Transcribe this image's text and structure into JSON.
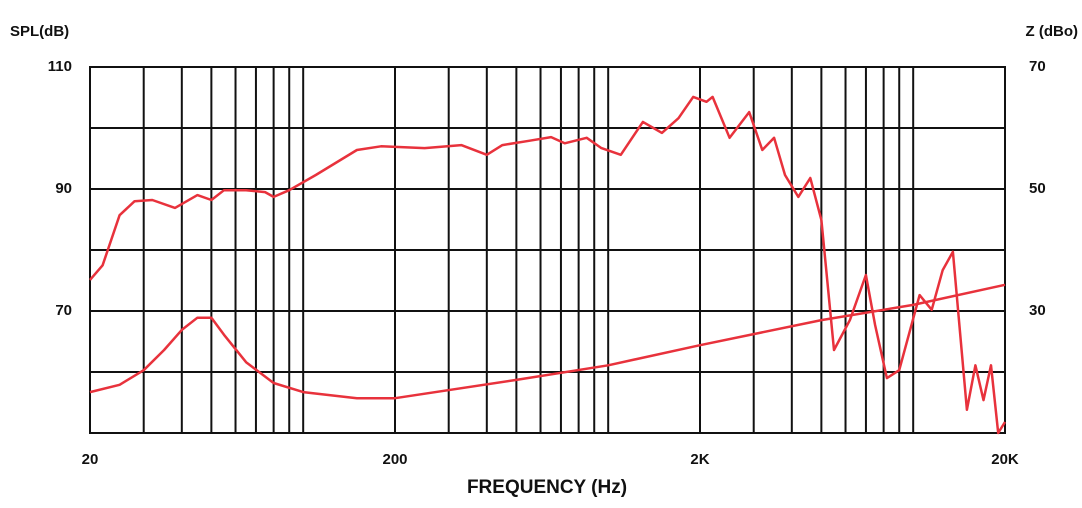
{
  "chart_data": {
    "type": "line",
    "ylabel": "SPL(dB)",
    "y2label": "Z (dBo)",
    "xlabel": "FREQUENCY (Hz)",
    "xscale": "log",
    "xlim": [
      20,
      20000
    ],
    "xticks": [
      20,
      200,
      {
        "value": 2000,
        "label": "2K"
      },
      {
        "value": 20000,
        "label": "20K"
      }
    ],
    "minor_xticks": [
      30,
      40,
      50,
      60,
      70,
      80,
      90,
      100,
      300,
      400,
      500,
      600,
      700,
      800,
      900,
      1000,
      3000,
      4000,
      5000,
      6000,
      7000,
      8000,
      9000,
      10000
    ],
    "ylim": [
      50,
      110
    ],
    "yticks": [
      70,
      90,
      110
    ],
    "minor_yticks": [
      60,
      80,
      100
    ],
    "y2lim": [
      10,
      70
    ],
    "y2ticks": [
      30,
      50,
      70
    ],
    "grid": true,
    "series": [
      {
        "name": "SPL",
        "color": "#e8323c",
        "axis": "y",
        "x": [
          20,
          22,
          25,
          28,
          32,
          38,
          45,
          50,
          55,
          65,
          75,
          80,
          90,
          110,
          150,
          180,
          250,
          330,
          400,
          450,
          550,
          650,
          720,
          850,
          950,
          1100,
          1300,
          1500,
          1700,
          1900,
          2100,
          2200,
          2500,
          2900,
          3200,
          3500,
          3800,
          4200,
          4600,
          5000,
          5500,
          6200,
          7000,
          7500,
          8200,
          9000,
          10500,
          11500,
          12500,
          13500,
          15000,
          16000,
          17000,
          18000,
          19000,
          20000
        ],
        "values": [
          75.1,
          77.5,
          85.7,
          88,
          88.2,
          86.9,
          89,
          88.2,
          89.8,
          89.8,
          89.5,
          88.7,
          89.8,
          92.3,
          96.4,
          97,
          96.7,
          97.2,
          95.6,
          97.2,
          97.9,
          98.5,
          97.5,
          98.4,
          96.7,
          95.6,
          101,
          99.2,
          101.6,
          105.1,
          104.3,
          105.1,
          98.4,
          102.6,
          96.4,
          98.4,
          92.3,
          88.7,
          91.8,
          84.9,
          63.6,
          68.5,
          75.9,
          67.7,
          59,
          60.3,
          72.6,
          70.2,
          76.7,
          79.7,
          53.8,
          61.1,
          55.4,
          61.1,
          50,
          51.8
        ]
      },
      {
        "name": "Z",
        "color": "#e8323c",
        "axis": "y2",
        "x": [
          20,
          25,
          30,
          35,
          40,
          45,
          50,
          55,
          65,
          80,
          100,
          150,
          200,
          500,
          1000,
          2000,
          5000,
          10000,
          20000
        ],
        "values": [
          16.7,
          17.9,
          20.3,
          23.6,
          26.9,
          28.9,
          28.9,
          26.1,
          21.6,
          18.2,
          16.7,
          15.7,
          15.7,
          18.7,
          21.1,
          24.4,
          28.5,
          31,
          34.3
        ]
      }
    ]
  }
}
